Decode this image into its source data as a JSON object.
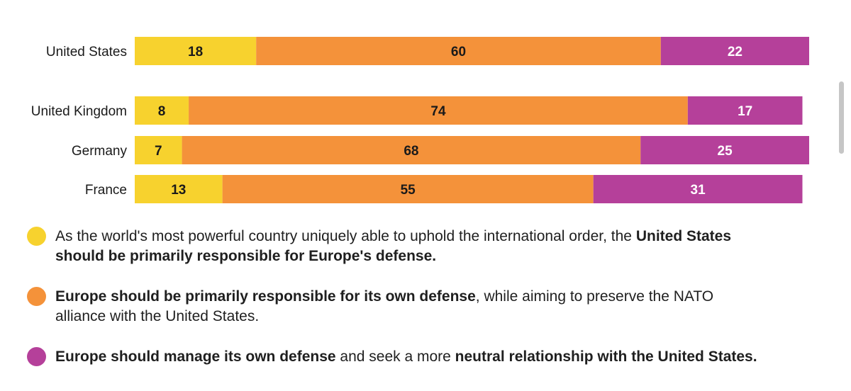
{
  "chart_data": {
    "type": "bar",
    "orientation": "horizontal",
    "stacked": true,
    "categories": [
      "United States",
      "United Kingdom",
      "Germany",
      "France"
    ],
    "series": [
      {
        "values": [
          18,
          8,
          7,
          13
        ],
        "color": "#f7d22e"
      },
      {
        "values": [
          60,
          74,
          68,
          55
        ],
        "color": "#f4923a"
      },
      {
        "values": [
          22,
          17,
          25,
          31
        ],
        "color": "#b5409a"
      }
    ],
    "xlim": [
      0,
      100
    ],
    "grid": false
  },
  "legend": {
    "items": [
      {
        "color": "#f7d22e",
        "parts": [
          {
            "text": "As the world's most powerful country uniquely able to uphold the international order, the ",
            "bold": false
          },
          {
            "text": "United States should be primarily responsible for Europe's defense.",
            "bold": true
          }
        ]
      },
      {
        "color": "#f4923a",
        "parts": [
          {
            "text": "Europe should be primarily responsible for its own defense",
            "bold": true
          },
          {
            "text": ", while aiming to preserve the NATO alliance with the United States.",
            "bold": false
          }
        ]
      },
      {
        "color": "#b5409a",
        "parts": [
          {
            "text": "Europe should manage its own defense",
            "bold": true
          },
          {
            "text": " and seek a more ",
            "bold": false
          },
          {
            "text": "neutral relationship with the United States.",
            "bold": true
          }
        ]
      }
    ]
  }
}
